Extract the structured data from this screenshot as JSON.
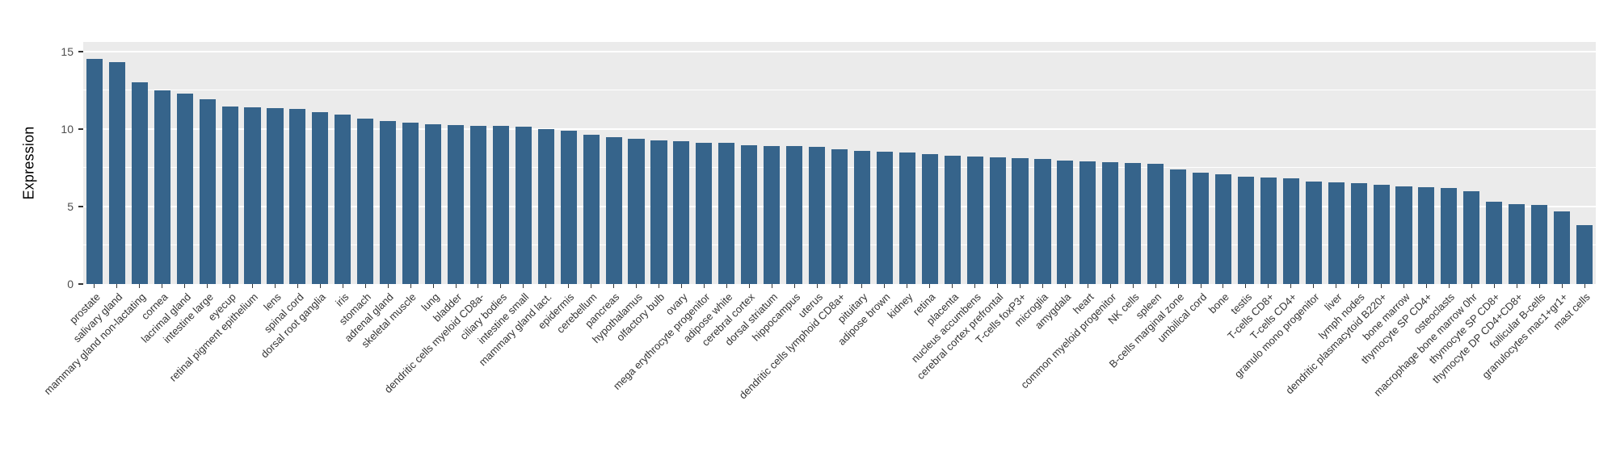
{
  "chart_data": {
    "type": "bar",
    "title": "",
    "xlabel": "",
    "ylabel": "Expression",
    "ylim": [
      0,
      15
    ],
    "yticks": [
      0,
      5,
      10,
      15
    ],
    "minor_gridlines": [
      2.5,
      7.5,
      12.5
    ],
    "y_panel_max": 15.6,
    "grid": true,
    "legend": "none",
    "bar_color": "#36648b",
    "panel_color": "#ebebeb",
    "gridline_color": "#ffffff",
    "categories": [
      "prostate",
      "salivary gland",
      "mammary gland non-lactating",
      "cornea",
      "lacrimal gland",
      "intestine large",
      "eyecup",
      "retinal pigment epithelium",
      "lens",
      "spinal cord",
      "dorsal root ganglia",
      "iris",
      "stomach",
      "adrenal gland",
      "skeletal muscle",
      "lung",
      "bladder",
      "dendritic cells myeloid CD8a-",
      "ciliary bodies",
      "intestine small",
      "mammary gland lact.",
      "epidermis",
      "cerebellum",
      "pancreas",
      "hypothalamus",
      "olfactory bulb",
      "ovary",
      "mega erythrocyte progenitor",
      "adipose white",
      "cerebral cortex",
      "dorsal striatum",
      "hippocampus",
      "uterus",
      "dendritic cells lymphoid CD8a+",
      "pituitary",
      "adipose brown",
      "kidney",
      "retina",
      "placenta",
      "nucleus accumbens",
      "cerebral cortex prefrontal",
      "T-cells foxP3+",
      "microglia",
      "amygdala",
      "heart",
      "common myeloid progenitor",
      "NK cells",
      "spleen",
      "B-cells marginal zone",
      "umbilical cord",
      "bone",
      "testis",
      "T-cells CD8+",
      "T-cells CD4+",
      "granulo mono progenitor",
      "liver",
      "lymph nodes",
      "dendritic plasmacytoid B220+",
      "bone marrow",
      "thymocyte SP CD4+",
      "osteoclasts",
      "macrophage bone marrow 0hr",
      "thymocyte SP CD8+",
      "thymocyte DP CD4+CD8+",
      "follicular B-cells",
      "granulocytes mac1+gr1+",
      "mast cells"
    ],
    "values": [
      14.5,
      14.3,
      13.0,
      12.5,
      12.3,
      11.9,
      11.45,
      11.4,
      11.35,
      11.3,
      11.1,
      10.9,
      10.65,
      10.5,
      10.4,
      10.3,
      10.25,
      10.2,
      10.2,
      10.15,
      10.0,
      9.9,
      9.6,
      9.45,
      9.35,
      9.25,
      9.2,
      9.1,
      9.1,
      8.95,
      8.9,
      8.9,
      8.85,
      8.7,
      8.6,
      8.55,
      8.5,
      8.4,
      8.25,
      8.2,
      8.15,
      8.1,
      8.05,
      7.95,
      7.9,
      7.85,
      7.8,
      7.75,
      7.4,
      7.2,
      7.1,
      6.9,
      6.85,
      6.8,
      6.6,
      6.55,
      6.5,
      6.4,
      6.3,
      6.25,
      6.2,
      6.0,
      5.3,
      5.15,
      5.1,
      4.7,
      3.8
    ]
  }
}
